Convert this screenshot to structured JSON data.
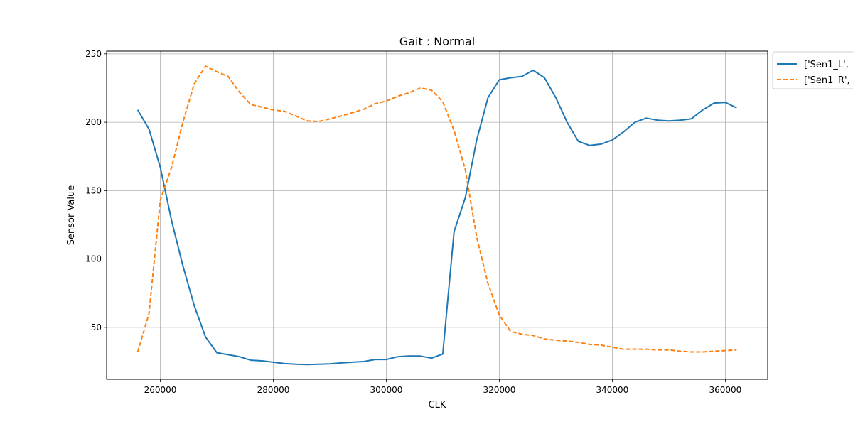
{
  "chart_data": {
    "type": "line",
    "title": "Gait : Normal",
    "xlabel": "CLK",
    "ylabel": "Sensor Value",
    "xlim": [
      250500,
      367500
    ],
    "ylim": [
      12,
      252
    ],
    "xticks": [
      260000,
      280000,
      300000,
      320000,
      340000,
      360000
    ],
    "xtick_labels": [
      "260000",
      "280000",
      "300000",
      "320000",
      "340000",
      "360000"
    ],
    "yticks": [
      50,
      100,
      150,
      200,
      250
    ],
    "ytick_labels": [
      "50",
      "100",
      "150",
      "200",
      "250"
    ],
    "grid": true,
    "legend_position": "upper-right-outside",
    "series": [
      {
        "name": "['Sen1_L',",
        "color": "#1f77b4",
        "dash": "solid",
        "x": [
          256000,
          258000,
          260000,
          262000,
          264000,
          266000,
          268000,
          270000,
          272000,
          274000,
          276000,
          278000,
          280000,
          282000,
          284000,
          286000,
          288000,
          290000,
          292000,
          294000,
          296000,
          298000,
          300000,
          302000,
          304000,
          306000,
          308000,
          310000,
          312000,
          314000,
          316000,
          318000,
          320000,
          322000,
          324000,
          326000,
          328000,
          330000,
          332000,
          334000,
          336000,
          338000,
          340000,
          342000,
          344000,
          346000,
          348000,
          350000,
          352000,
          354000,
          356000,
          358000,
          360000,
          362000
        ],
        "values": [
          209,
          195,
          167,
          128,
          95,
          66,
          43,
          31.5,
          30,
          28.5,
          26,
          25.5,
          24.5,
          23.5,
          23,
          22.8,
          23,
          23.3,
          24,
          24.5,
          25,
          26.5,
          26.5,
          28.5,
          29,
          29,
          27.5,
          30.5,
          120,
          145,
          187,
          218,
          231,
          232.5,
          233.5,
          238,
          232.5,
          218,
          200,
          186,
          183,
          184,
          187,
          193,
          200,
          203,
          201.5,
          201,
          201.5,
          202.5,
          209,
          214,
          214.5,
          210.5
        ]
      },
      {
        "name": "['Sen1_R',",
        "color": "#ff7f0e",
        "dash": "dashed",
        "x": [
          256000,
          258000,
          260000,
          262000,
          264000,
          266000,
          268000,
          270000,
          272000,
          274000,
          276000,
          278000,
          280000,
          282000,
          284000,
          286000,
          288000,
          290000,
          292000,
          294000,
          296000,
          298000,
          300000,
          302000,
          304000,
          306000,
          308000,
          310000,
          312000,
          314000,
          316000,
          318000,
          320000,
          322000,
          324000,
          326000,
          328000,
          330000,
          332000,
          334000,
          336000,
          338000,
          340000,
          342000,
          344000,
          346000,
          348000,
          350000,
          352000,
          354000,
          356000,
          358000,
          360000,
          362000
        ],
        "values": [
          32,
          60,
          143,
          167,
          200,
          228,
          241,
          237,
          233.5,
          222,
          213,
          211,
          209,
          208,
          204.5,
          201,
          200.5,
          202.5,
          204.5,
          207,
          209.5,
          213.5,
          215.5,
          219,
          221.5,
          225,
          223.5,
          215,
          194,
          165,
          116,
          82,
          59,
          47,
          45,
          44,
          41.5,
          40.5,
          40,
          39,
          37.5,
          37,
          35.5,
          34,
          34,
          34,
          33.5,
          33.5,
          32.5,
          32,
          32,
          32.5,
          33,
          33.5
        ]
      }
    ]
  }
}
